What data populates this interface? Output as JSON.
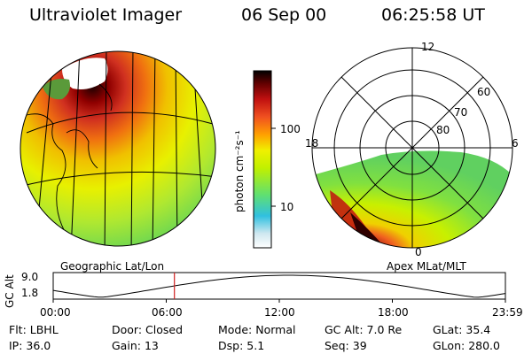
{
  "header": {
    "instrument": "Ultraviolet Imager",
    "date": "06 Sep 00",
    "time": "06:25:58 UT"
  },
  "left_panel": {
    "caption": "Geographic Lat/Lon"
  },
  "right_panel": {
    "caption": "Apex MLat/MLT",
    "mlt_labels": {
      "top": "12",
      "left": "18",
      "right": "6",
      "bottom": "0"
    },
    "lat_labels": [
      "60",
      "70",
      "80"
    ]
  },
  "colorbar": {
    "unit_label": "photon cm⁻²s⁻¹",
    "ticks": [
      "100",
      "10"
    ],
    "colors": [
      "#e8e8e8",
      "#40c8e0",
      "#78e060",
      "#f0f000",
      "#ffa000",
      "#e03020",
      "#a00000",
      "#200000"
    ]
  },
  "altitude_plot": {
    "ylabel": "GC Alt",
    "ytick_top": "9.0",
    "ytick_bottom": "1.8",
    "xticks": [
      "00:00",
      "06:00",
      "12:00",
      "18:00",
      "23:59"
    ],
    "marker_time": "06:25:58"
  },
  "info": {
    "row1": [
      {
        "key": "Flt:",
        "value": "LBHL"
      },
      {
        "key": "Door:",
        "value": "Closed"
      },
      {
        "key": "Mode:",
        "value": "Normal"
      },
      {
        "key": "GC Alt:",
        "value": "7.0 Re"
      },
      {
        "key": "GLat:",
        "value": "35.4"
      }
    ],
    "row2": [
      {
        "key": "IP:",
        "value": "36.0"
      },
      {
        "key": "Gain:",
        "value": "13"
      },
      {
        "key": "Dsp:",
        "value": "5.1"
      },
      {
        "key": "Seq:",
        "value": "39"
      },
      {
        "key": "GLon:",
        "value": "280.0"
      }
    ]
  }
}
